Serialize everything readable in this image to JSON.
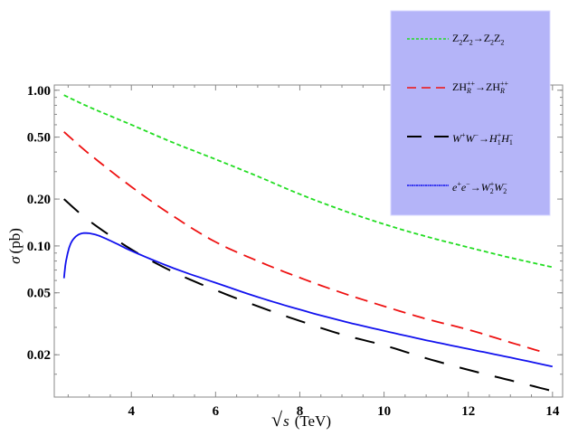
{
  "chart_data": {
    "type": "line",
    "title": "",
    "xlabel": "√s (TeV)",
    "xlabel_parts": {
      "sqrt": "√",
      "var": "s",
      "unit": "(TeV)"
    },
    "ylabel": "σ (pb)",
    "ylabel_parts": {
      "sym": "σ",
      "unit": "(pb)"
    },
    "xlim": [
      2.17,
      14.24
    ],
    "ylim": [
      0.0107,
      1.08
    ],
    "yscale": "log",
    "grid": false,
    "legend_placement": "top-right",
    "legend_bg": "#b4b4f8",
    "xticks": [
      "4",
      "6",
      "8",
      "10",
      "12",
      "14"
    ],
    "xtick_values": [
      4,
      6,
      8,
      10,
      12,
      14
    ],
    "yticks": [
      "1.00",
      "0.50",
      "0.20",
      "0.10",
      "0.05",
      "0.02"
    ],
    "ytick_values": [
      1.0,
      0.5,
      0.2,
      0.1,
      0.05,
      0.02
    ],
    "series": [
      {
        "name": "Z2Z2→Z2Z2",
        "label_html": "Z<sub>2</sub>Z<sub>2</sub>→Z<sub>2</sub>Z<sub>2</sub>",
        "color": "#22dd22",
        "dash": "short",
        "x": [
          2.4,
          3,
          4,
          5,
          6,
          7,
          8,
          9,
          10,
          11,
          12,
          13,
          14
        ],
        "y": [
          0.93,
          0.78,
          0.6,
          0.46,
          0.36,
          0.28,
          0.215,
          0.17,
          0.138,
          0.115,
          0.098,
          0.084,
          0.073
        ]
      },
      {
        "name": "ZH_R^{++}→ZH_R^{++}",
        "color": "#ee1111",
        "dash": "medium",
        "x": [
          2.4,
          3,
          4,
          5,
          6,
          7,
          8,
          9,
          10,
          11,
          12,
          13,
          13.8
        ],
        "y": [
          0.54,
          0.39,
          0.24,
          0.155,
          0.106,
          0.08,
          0.0625,
          0.05,
          0.041,
          0.034,
          0.029,
          0.024,
          0.0207
        ]
      },
      {
        "name": "W+W-→H1+H1-",
        "color": "#000000",
        "dash": "long",
        "x": [
          2.4,
          3,
          4,
          5,
          6,
          7,
          8,
          9,
          10,
          11,
          12,
          13,
          14
        ],
        "y": [
          0.2,
          0.145,
          0.095,
          0.068,
          0.052,
          0.041,
          0.033,
          0.027,
          0.023,
          0.019,
          0.016,
          0.0137,
          0.0117
        ]
      },
      {
        "name": "e+e-→W2+W2-",
        "color": "#1111ee",
        "dash": "solid",
        "x": [
          2.4,
          2.45,
          2.55,
          2.7,
          2.9,
          3.2,
          3.6,
          4,
          5,
          6,
          7,
          8,
          9,
          10,
          11,
          12,
          13,
          14
        ],
        "y": [
          0.062,
          0.08,
          0.102,
          0.116,
          0.121,
          0.117,
          0.105,
          0.093,
          0.072,
          0.058,
          0.047,
          0.039,
          0.033,
          0.0285,
          0.0248,
          0.0218,
          0.0192,
          0.0168
        ]
      }
    ]
  }
}
